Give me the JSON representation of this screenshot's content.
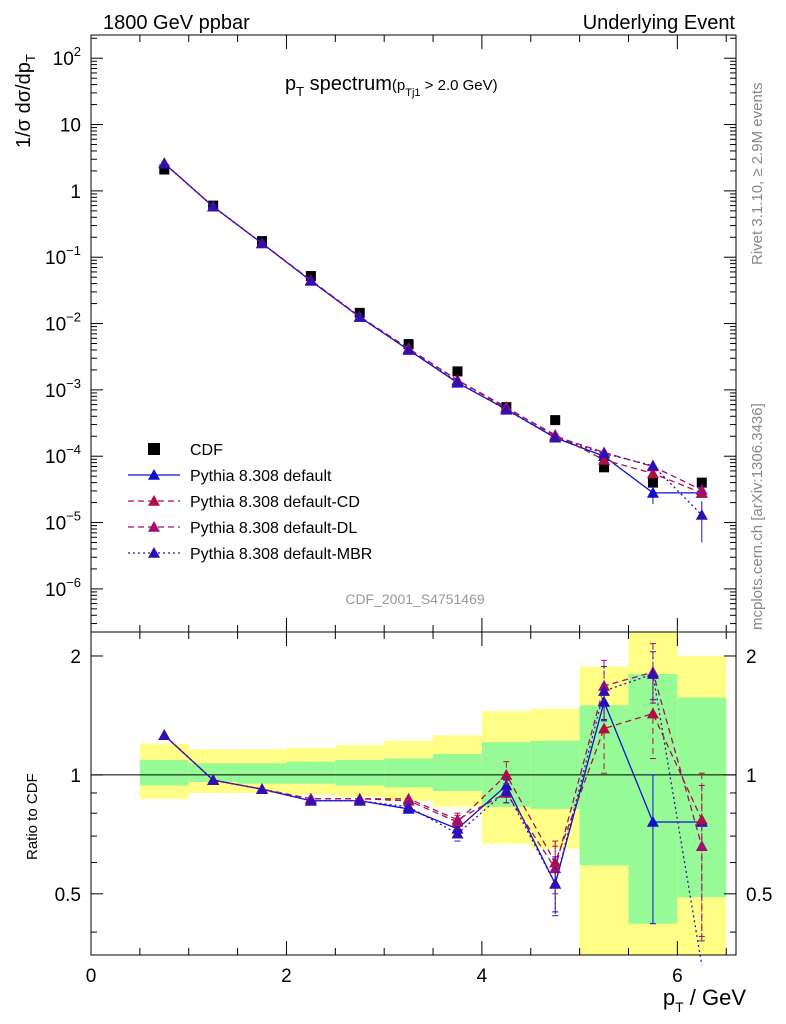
{
  "header": {
    "left": "1800 GeV ppbar",
    "right": "Underlying Event"
  },
  "side": {
    "rivet": "Rivet 3.1.10, ≥ 2.9M events",
    "mcplots": "mcplots.cern.ch [arXiv:1306.3436]"
  },
  "analysis_id": "CDF_2001_S4751469",
  "chart_data": [
    {
      "type": "scatter",
      "panel": "main",
      "title_main": "p",
      "title_sub": "T",
      "title_rest": " spectrum",
      "title_cut_open": "(p",
      "title_cut_sub": "Tj1",
      "title_cut_rest": " > 2.0 GeV)",
      "ylabel": "1/σ dσ/dp",
      "ylabel_sub": "T",
      "yscale": "log",
      "xlim": [
        0,
        6.6
      ],
      "ylim_exp": [
        -6.65,
        2.35
      ],
      "y_ticks": [
        {
          "exp": 2,
          "label": "10",
          "sup": "2"
        },
        {
          "exp": 1,
          "label": "10",
          "sup": ""
        },
        {
          "exp": 0,
          "label": "1",
          "sup": ""
        },
        {
          "exp": -1,
          "label": "10",
          "sup": "−1"
        },
        {
          "exp": -2,
          "label": "10",
          "sup": "−2"
        },
        {
          "exp": -3,
          "label": "10",
          "sup": "−3"
        },
        {
          "exp": -4,
          "label": "10",
          "sup": "−4"
        },
        {
          "exp": -5,
          "label": "10",
          "sup": "−5"
        },
        {
          "exp": -6,
          "label": "10",
          "sup": "−6"
        }
      ],
      "x": [
        0.75,
        1.25,
        1.75,
        2.25,
        2.75,
        3.25,
        3.75,
        4.25,
        4.75,
        5.25,
        5.75,
        6.25
      ],
      "legend_position": "bottom-left",
      "series": [
        {
          "name": "CDF",
          "color": "#000000",
          "marker": "square",
          "line": "none",
          "values": [
            2.1,
            0.6,
            0.175,
            0.052,
            0.0145,
            0.0049,
            0.0019,
            0.00055,
            0.00035,
            6.8e-05,
            4e-05,
            4e-05
          ]
        },
        {
          "name": "Pythia 8.308 default",
          "color": "#1010d0",
          "marker": "triangle",
          "line": "solid",
          "values": [
            2.6,
            0.58,
            0.162,
            0.044,
            0.0125,
            0.004,
            0.00128,
            0.00051,
            0.00019,
            0.0001,
            2.8e-05,
            2.8e-05
          ],
          "errors": [
            0,
            0,
            0,
            0,
            0,
            0,
            0,
            0,
            0,
            0,
            9e-06,
            0
          ]
        },
        {
          "name": "Pythia 8.308 default-CD",
          "color": "#b01040",
          "marker": "triangle",
          "line": "dashed",
          "values": [
            2.6,
            0.58,
            0.162,
            0.045,
            0.0127,
            0.0042,
            0.0014,
            0.00053,
            0.00021,
            8.8e-05,
            5.5e-05,
            2.8e-05
          ]
        },
        {
          "name": "Pythia 8.308 default-DL",
          "color": "#a01070",
          "marker": "triangle",
          "line": "dashed",
          "values": [
            2.6,
            0.58,
            0.162,
            0.045,
            0.0127,
            0.0042,
            0.0014,
            0.00055,
            0.0002,
            0.000114,
            7e-05,
            3.1e-05
          ]
        },
        {
          "name": "Pythia 8.308 default-MBR",
          "color": "#3010b0",
          "marker": "triangle",
          "line": "dotted",
          "values": [
            2.6,
            0.58,
            0.162,
            0.044,
            0.0126,
            0.004,
            0.00132,
            0.0005,
            0.00019,
            0.00011,
            7.2e-05,
            1.3e-05
          ],
          "errors": [
            0,
            0,
            0,
            0,
            0,
            0,
            0,
            0,
            0,
            0,
            0,
            8e-06
          ]
        }
      ]
    },
    {
      "type": "scatter",
      "panel": "ratio",
      "ylabel": "Ratio to CDF",
      "xlabel": "p",
      "xlabel_sub": "T",
      "xlabel_rest": " / GeV",
      "yscale": "log",
      "xlim": [
        0,
        6.6
      ],
      "ylim": [
        0.35,
        2.3
      ],
      "x_ticks": [
        "0",
        "2",
        "4",
        "6"
      ],
      "y_ticks": [
        {
          "v": 2,
          "label": "2"
        },
        {
          "v": 1,
          "label": "1"
        },
        {
          "v": 0.5,
          "label": "0.5"
        }
      ],
      "uncertainty_bands": {
        "yellow_color": "#ffff88",
        "green_color": "#96fa96",
        "edges": [
          0.5,
          1.0,
          1.5,
          2.0,
          2.5,
          3.0,
          3.5,
          4.0,
          4.5,
          5.0,
          5.5,
          6.0,
          6.5
        ],
        "yellow_lo": [
          0.87,
          0.9,
          0.9,
          0.89,
          0.88,
          0.86,
          0.83,
          0.67,
          0.65,
          0.35,
          0.35,
          0.35
        ],
        "yellow_hi": [
          1.2,
          1.16,
          1.16,
          1.17,
          1.19,
          1.22,
          1.26,
          1.45,
          1.47,
          1.88,
          2.3,
          2.0
        ],
        "green_lo": [
          0.94,
          0.96,
          0.95,
          0.95,
          0.94,
          0.93,
          0.91,
          0.83,
          0.82,
          0.59,
          0.42,
          0.49
        ],
        "green_hi": [
          1.09,
          1.07,
          1.07,
          1.08,
          1.09,
          1.1,
          1.13,
          1.21,
          1.22,
          1.5,
          1.8,
          1.57
        ]
      },
      "x": [
        0.75,
        1.25,
        1.75,
        2.25,
        2.75,
        3.25,
        3.75,
        4.25,
        4.75,
        5.25,
        5.75,
        6.25
      ],
      "series": [
        {
          "name": "Pythia 8.308 default",
          "color": "#1010d0",
          "line": "solid",
          "values": [
            1.26,
            0.97,
            0.92,
            0.86,
            0.86,
            0.82,
            0.73,
            0.94,
            0.53,
            1.53,
            0.76,
            0.76
          ],
          "err_lo": [
            0,
            0,
            0,
            0,
            0,
            0,
            0.03,
            0.06,
            0.08,
            0.16,
            0.34,
            0
          ],
          "err_hi": [
            0,
            0,
            0,
            0,
            0,
            0,
            0.03,
            0.06,
            0.08,
            0.16,
            0.24,
            0
          ]
        },
        {
          "name": "Pythia 8.308 default-CD",
          "color": "#b01040",
          "line": "dashed",
          "values": [
            1.26,
            0.97,
            0.92,
            0.87,
            0.87,
            0.86,
            0.76,
            1.0,
            0.6,
            1.31,
            1.43,
            0.77
          ],
          "err_lo": [
            0,
            0,
            0,
            0,
            0,
            0,
            0.03,
            0.08,
            0.08,
            0.3,
            0.33,
            0.38
          ],
          "err_hi": [
            0,
            0,
            0,
            0,
            0,
            0,
            0.03,
            0.08,
            0.08,
            0.3,
            0.33,
            0.24
          ]
        },
        {
          "name": "Pythia 8.308 default-DL",
          "color": "#a01070",
          "line": "dashed",
          "values": [
            1.26,
            0.97,
            0.92,
            0.87,
            0.87,
            0.87,
            0.77,
            0.9,
            0.58,
            1.68,
            1.82,
            0.66
          ],
          "err_lo": [
            0,
            0,
            0,
            0,
            0,
            0,
            0.03,
            0.05,
            0.08,
            0.3,
            0.3,
            0.28
          ],
          "err_hi": [
            0,
            0,
            0,
            0,
            0,
            0,
            0.03,
            0.05,
            0.08,
            0.27,
            0.33,
            0.28
          ]
        },
        {
          "name": "Pythia 8.308 default-MBR",
          "color": "#3010b0",
          "line": "dotted",
          "values": [
            1.26,
            0.97,
            0.92,
            0.86,
            0.86,
            0.83,
            0.71,
            0.91,
            0.53,
            1.63,
            1.8,
            0.33
          ],
          "err_lo": [
            0,
            0,
            0,
            0,
            0,
            0,
            0.03,
            0.06,
            0.09,
            0.25,
            0.25,
            0
          ],
          "err_hi": [
            0,
            0,
            0,
            0,
            0,
            0,
            0.03,
            0.06,
            0.09,
            0.25,
            0.25,
            0
          ]
        }
      ]
    }
  ]
}
